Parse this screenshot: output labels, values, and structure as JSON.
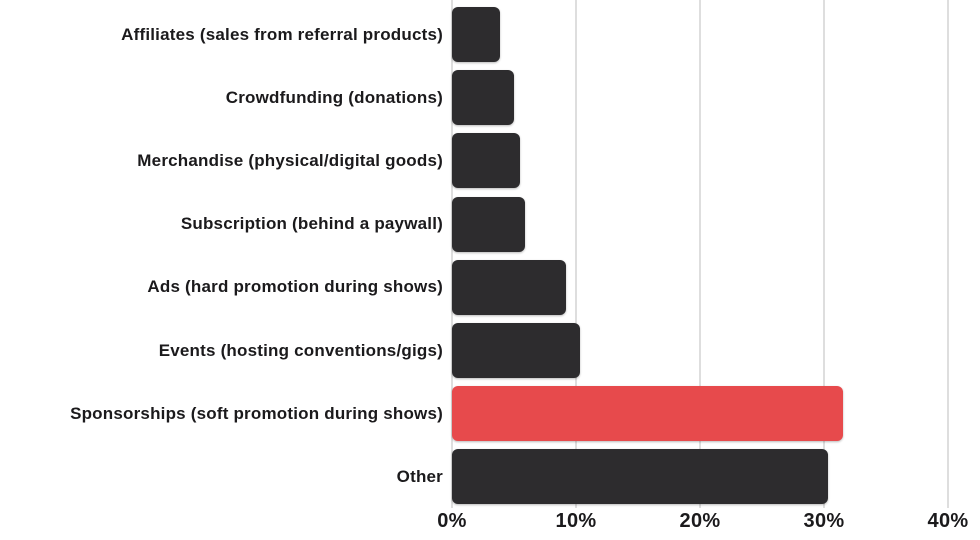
{
  "chart_data": {
    "type": "bar",
    "orientation": "horizontal",
    "title": "",
    "xlabel": "",
    "ylabel": "",
    "unit": "%",
    "categories": [
      "Affiliates (sales from referral products)",
      "Crowdfunding (donations)",
      "Merchandise (physical/digital goods)",
      "Subscription (behind a paywall)",
      "Ads (hard promotion during shows)",
      "Events (hosting conventions/gigs)",
      "Sponsorships (soft promotion during shows)",
      "Other"
    ],
    "values": [
      3.9,
      5.0,
      5.5,
      5.9,
      9.2,
      10.3,
      31.5,
      30.3
    ],
    "xlim": [
      0,
      40
    ],
    "x_ticks": [
      "0%",
      "10%",
      "20%",
      "30%",
      "40%"
    ],
    "x_tick_values": [
      0,
      10,
      20,
      30,
      40
    ],
    "grid": "vertical",
    "legend": "none",
    "highlight_index": 6,
    "colors": {
      "bar": "#2d2c2e",
      "highlight": "#e74a4c",
      "gridline": "#dedede",
      "label_text": "#1b1a1c",
      "tick_text": "#1b1a1c",
      "background": "#ffffff"
    }
  }
}
